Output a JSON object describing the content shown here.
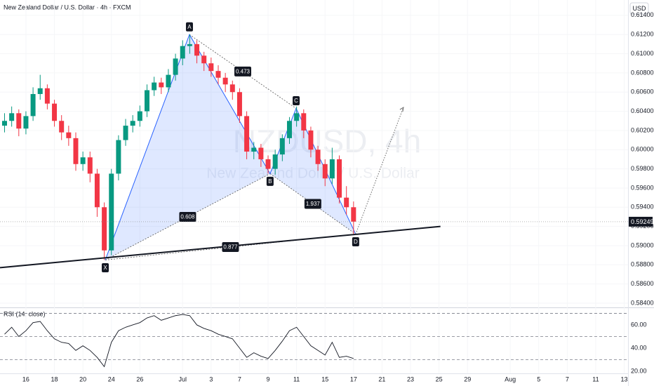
{
  "title": "New Zealand Dollar / U.S. Dollar · 4h · FXCM",
  "currency": "USD",
  "watermark": {
    "symbol": "NZDUSD, 4h",
    "name": "New Zealand Dollar / U.S. Dollar"
  },
  "chart_data": [
    {
      "type": "candlestick",
      "up_color": "#089981",
      "down_color": "#f23645",
      "xlim": [
        -1.82,
        42.27
      ],
      "ylim": [
        0.58356,
        0.6156
      ],
      "yticks": [
        {
          "value": 0.584,
          "label": "0.58400"
        },
        {
          "value": 0.586,
          "label": "0.58600"
        },
        {
          "value": 0.588,
          "label": "0.58800"
        },
        {
          "value": 0.59,
          "label": "0.59000"
        },
        {
          "value": 0.592,
          "label": "0.59200"
        },
        {
          "value": 0.594,
          "label": "0.59400"
        },
        {
          "value": 0.596,
          "label": "0.59600"
        },
        {
          "value": 0.598,
          "label": "0.59800"
        },
        {
          "value": 0.6,
          "label": "0.60000"
        },
        {
          "value": 0.602,
          "label": "0.60200"
        },
        {
          "value": 0.604,
          "label": "0.60400"
        },
        {
          "value": 0.606,
          "label": "0.60600"
        },
        {
          "value": 0.608,
          "label": "0.60800"
        },
        {
          "value": 0.61,
          "label": "0.61000"
        },
        {
          "value": 0.612,
          "label": "0.61200"
        },
        {
          "value": 0.614,
          "label": "0.61400"
        }
      ],
      "x": [
        -1.5,
        -1,
        -0.5,
        0,
        0.5,
        1,
        1.5,
        2,
        2.5,
        3,
        3.5,
        4,
        4.5,
        5,
        5.5,
        6,
        6.5,
        7,
        7.5,
        8,
        8.5,
        9,
        9.5,
        10,
        10.5,
        11,
        11.5,
        12,
        12.5,
        13,
        13.5,
        14,
        14.5,
        15,
        15.5,
        16,
        16.5,
        17,
        17.5,
        18,
        18.5,
        19,
        19.5,
        20,
        20.5,
        21,
        21.5,
        22,
        22.5,
        23
      ],
      "open": [
        0.6025,
        0.603,
        0.6038,
        0.6022,
        0.6035,
        0.6058,
        0.6064,
        0.6048,
        0.603,
        0.6018,
        0.6012,
        0.5985,
        0.5992,
        0.5975,
        0.594,
        0.5895,
        0.5975,
        0.601,
        0.6025,
        0.603,
        0.604,
        0.6062,
        0.607,
        0.6065,
        0.6078,
        0.6095,
        0.6108,
        0.611,
        0.6098,
        0.609,
        0.6082,
        0.6075,
        0.6068,
        0.606,
        0.6035,
        0.5998,
        0.6002,
        0.599,
        0.598,
        0.5995,
        0.6012,
        0.603,
        0.6038,
        0.602,
        0.6,
        0.5985,
        0.597,
        0.599,
        0.595,
        0.594
      ],
      "high": [
        0.6038,
        0.6045,
        0.6042,
        0.604,
        0.6065,
        0.6078,
        0.6068,
        0.6052,
        0.6036,
        0.6025,
        0.6018,
        0.5998,
        0.5998,
        0.598,
        0.5945,
        0.598,
        0.6015,
        0.6032,
        0.6036,
        0.6046,
        0.6068,
        0.6076,
        0.6075,
        0.6084,
        0.61,
        0.6114,
        0.612,
        0.6114,
        0.6102,
        0.6096,
        0.6088,
        0.608,
        0.6072,
        0.6064,
        0.604,
        0.6008,
        0.6006,
        0.5994,
        0.6,
        0.6016,
        0.6034,
        0.6045,
        0.6042,
        0.6024,
        0.6004,
        0.599,
        0.6002,
        0.5994,
        0.5962,
        0.5946
      ],
      "low": [
        0.6018,
        0.6024,
        0.6014,
        0.6016,
        0.603,
        0.6052,
        0.6042,
        0.6024,
        0.601,
        0.6004,
        0.5978,
        0.5978,
        0.5966,
        0.593,
        0.5885,
        0.589,
        0.5968,
        0.6004,
        0.6018,
        0.6024,
        0.6034,
        0.6056,
        0.6058,
        0.606,
        0.6072,
        0.6088,
        0.61,
        0.609,
        0.6082,
        0.6076,
        0.6068,
        0.606,
        0.6052,
        0.6028,
        0.599,
        0.599,
        0.5982,
        0.5975,
        0.5974,
        0.5988,
        0.6006,
        0.6024,
        0.6012,
        0.5992,
        0.5978,
        0.5962,
        0.5964,
        0.5944,
        0.5932,
        0.5912
      ],
      "close": [
        0.603,
        0.6038,
        0.6022,
        0.6035,
        0.6058,
        0.6064,
        0.6048,
        0.603,
        0.6018,
        0.6012,
        0.5985,
        0.5992,
        0.5975,
        0.594,
        0.5895,
        0.5975,
        0.601,
        0.6025,
        0.603,
        0.604,
        0.6062,
        0.607,
        0.6065,
        0.6078,
        0.6095,
        0.6108,
        0.611,
        0.6098,
        0.609,
        0.6082,
        0.6075,
        0.6068,
        0.606,
        0.6035,
        0.5998,
        0.6002,
        0.599,
        0.598,
        0.5995,
        0.6012,
        0.603,
        0.6038,
        0.602,
        0.6,
        0.5985,
        0.597,
        0.599,
        0.595,
        0.594,
        0.5925
      ],
      "last_price": 0.59249,
      "pattern": {
        "color": "#2962ff",
        "points": [
          {
            "label": "X",
            "x": 5.57,
            "y": 0.5885
          },
          {
            "label": "A",
            "x": 11.48,
            "y": 0.612
          },
          {
            "label": "B",
            "x": 17.14,
            "y": 0.5975
          },
          {
            "label": "C",
            "x": 18.97,
            "y": 0.6043
          },
          {
            "label": "D",
            "x": 23.15,
            "y": 0.5912
          }
        ],
        "ratios": [
          "0.473",
          "1.937",
          "0.608",
          "0.877"
        ]
      },
      "trendline": {
        "x": [
          -1.82,
          29.1
        ],
        "y": [
          0.5877,
          0.592
        ]
      },
      "projection": {
        "x": [
          23.15,
          26.5
        ],
        "y": [
          0.5912,
          0.6044
        ]
      }
    },
    {
      "type": "line",
      "title": "RSI (14, close)",
      "color": "#131722",
      "xlim": [
        -1.82,
        42.27
      ],
      "ylim": [
        18.2,
        73.9
      ],
      "levels": [
        70,
        50,
        30
      ],
      "yticks": [
        {
          "value": 60,
          "label": "60.00"
        },
        {
          "value": 40,
          "label": "40.00"
        },
        {
          "value": 20,
          "label": "20.00"
        }
      ],
      "values": [
        52,
        58,
        50,
        55,
        62,
        63,
        55,
        48,
        45,
        44,
        38,
        42,
        38,
        32,
        24,
        45,
        55,
        58,
        60,
        62,
        66,
        68,
        64,
        66,
        68,
        69,
        68,
        60,
        57,
        55,
        52,
        50,
        48,
        40,
        32,
        36,
        33,
        31,
        38,
        46,
        55,
        58,
        50,
        42,
        38,
        34,
        45,
        32,
        33,
        31
      ],
      "xticks": [
        {
          "value": 0,
          "label": "16"
        },
        {
          "value": 2,
          "label": "18"
        },
        {
          "value": 4,
          "label": "20"
        },
        {
          "value": 6,
          "label": "24"
        },
        {
          "value": 8,
          "label": "26"
        },
        {
          "value": 11,
          "label": "Jul"
        },
        {
          "value": 13,
          "label": "3"
        },
        {
          "value": 15,
          "label": "7"
        },
        {
          "value": 17,
          "label": "9"
        },
        {
          "value": 19,
          "label": "11"
        },
        {
          "value": 21,
          "label": "15"
        },
        {
          "value": 23,
          "label": "17"
        },
        {
          "value": 25,
          "label": "21"
        },
        {
          "value": 27,
          "label": "23"
        },
        {
          "value": 29,
          "label": "25"
        },
        {
          "value": 31,
          "label": "29"
        },
        {
          "value": 34,
          "label": "Aug"
        },
        {
          "value": 36,
          "label": "5"
        },
        {
          "value": 38,
          "label": "7"
        },
        {
          "value": 40,
          "label": "11"
        },
        {
          "value": 42,
          "label": "13"
        }
      ]
    }
  ]
}
